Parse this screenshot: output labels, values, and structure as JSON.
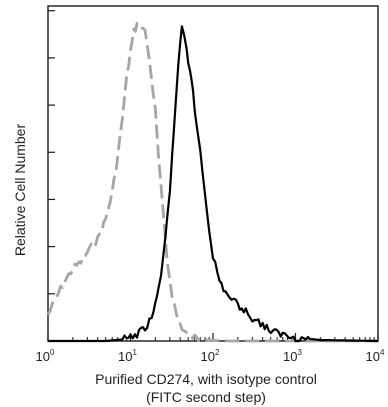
{
  "chart_data": {
    "type": "line",
    "title": "",
    "xlabel_line1": "Purified  CD274,  with isotype control",
    "xlabel_line2": "(FITC second step)",
    "ylabel": "Relative Cell Number",
    "x_scale": "log",
    "xlim": [
      1,
      10000
    ],
    "ylim": [
      0,
      100
    ],
    "x_ticks": [
      {
        "base": "10",
        "exp": "0",
        "value": 1
      },
      {
        "base": "10",
        "exp": "1",
        "value": 10
      },
      {
        "base": "10",
        "exp": "2",
        "value": 100
      },
      {
        "base": "10",
        "exp": "3",
        "value": 1000
      },
      {
        "base": "10",
        "exp": "4",
        "value": 10000
      }
    ],
    "y_ticks_labeled": false,
    "y_tick_count": 7,
    "grid": false,
    "legend": "none",
    "series": [
      {
        "style": "dashed",
        "color": "#a6a6a6",
        "x": [
          1,
          1.2,
          1.5,
          2,
          2.5,
          3,
          4,
          5,
          6,
          7,
          8,
          9,
          10,
          11,
          12,
          13,
          14,
          15,
          16,
          18,
          20,
          22,
          25,
          28,
          32,
          36,
          40,
          45,
          50,
          60,
          70,
          80,
          100,
          120,
          150,
          200,
          300,
          500,
          1000,
          10000
        ],
        "y": [
          8,
          12,
          17,
          22,
          24,
          27,
          31,
          37,
          45,
          56,
          68,
          80,
          88,
          94,
          96,
          96,
          95,
          94,
          90,
          80,
          70,
          55,
          38,
          24,
          14,
          8,
          5,
          3,
          2,
          1,
          0.5,
          0.3,
          0.2,
          0.1,
          0,
          0,
          0,
          0,
          0,
          0
        ]
      },
      {
        "style": "solid",
        "color": "#000000",
        "x": [
          1,
          5,
          8,
          10,
          12,
          15,
          18,
          20,
          22,
          25,
          28,
          30,
          32,
          35,
          38,
          40,
          42,
          45,
          48,
          50,
          55,
          60,
          70,
          80,
          90,
          100,
          120,
          150,
          200,
          250,
          300,
          400,
          500,
          700,
          1000,
          2000,
          10000
        ],
        "y": [
          0,
          0,
          0.5,
          1,
          2,
          4,
          7,
          11,
          16,
          25,
          38,
          46,
          57,
          70,
          83,
          90,
          95,
          92,
          88,
          85,
          80,
          70,
          58,
          45,
          34,
          26,
          18,
          14,
          11,
          9,
          7,
          5,
          3,
          2,
          1,
          0.3,
          0
        ]
      }
    ]
  }
}
